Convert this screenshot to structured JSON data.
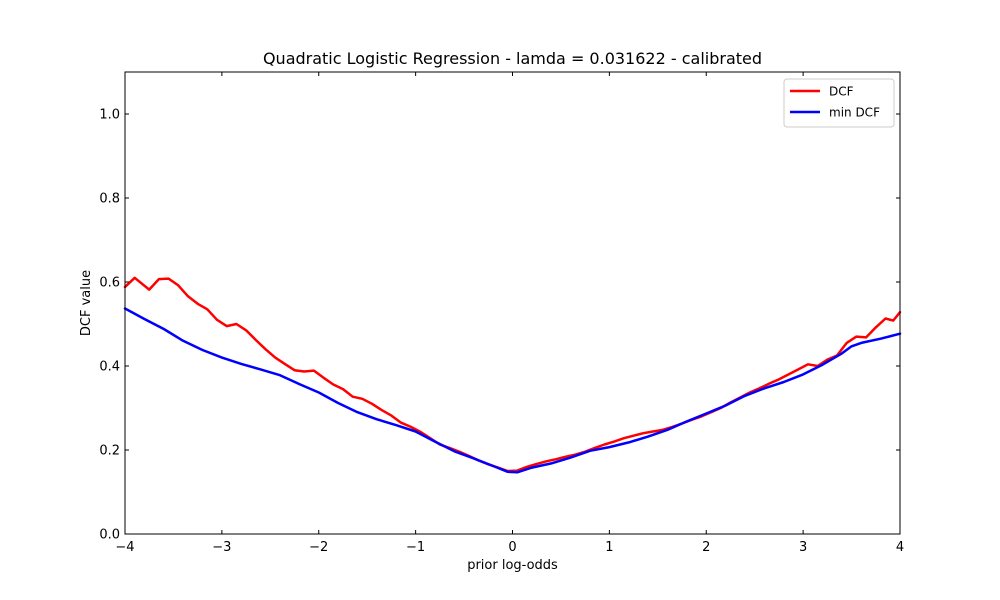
{
  "chart_data": {
    "type": "line",
    "title": "Quadratic Logistic Regression - lamda = 0.031622 - calibrated",
    "xlabel": "prior log-odds",
    "ylabel": "DCF value",
    "xlim": [
      -4,
      4
    ],
    "ylim": [
      0,
      1.1
    ],
    "xticks": [
      -4,
      -3,
      -2,
      -1,
      0,
      1,
      2,
      3,
      4
    ],
    "xtick_labels": [
      "−4",
      "−3",
      "−2",
      "−1",
      "0",
      "1",
      "2",
      "3",
      "4"
    ],
    "yticks": [
      0,
      0.2,
      0.4,
      0.6,
      0.8,
      1.0
    ],
    "ytick_labels": [
      "0.0",
      "0.2",
      "0.4",
      "0.6",
      "0.8",
      "1.0"
    ],
    "grid": false,
    "legend_position": "top-right",
    "series": [
      {
        "name": "DCF",
        "color": "#ff0000",
        "x": [
          -4,
          -3.9,
          -3.75,
          -3.65,
          -3.55,
          -3.45,
          -3.35,
          -3.25,
          -3.15,
          -3.05,
          -2.95,
          -2.85,
          -2.75,
          -2.65,
          -2.55,
          -2.45,
          -2.35,
          -2.25,
          -2.15,
          -2.05,
          -1.95,
          -1.85,
          -1.75,
          -1.65,
          -1.55,
          -1.45,
          -1.35,
          -1.25,
          -1.15,
          -1.05,
          -0.95,
          -0.85,
          -0.75,
          -0.65,
          -0.55,
          -0.45,
          -0.35,
          -0.25,
          -0.15,
          -0.05,
          0.05,
          0.15,
          0.25,
          0.35,
          0.45,
          0.55,
          0.65,
          0.75,
          0.85,
          0.95,
          1.05,
          1.15,
          1.25,
          1.35,
          1.45,
          1.55,
          1.65,
          1.75,
          1.85,
          1.95,
          2.05,
          2.15,
          2.25,
          2.35,
          2.45,
          2.55,
          2.65,
          2.75,
          2.85,
          2.95,
          3.05,
          3.15,
          3.25,
          3.35,
          3.45,
          3.55,
          3.65,
          3.75,
          3.85,
          3.93,
          4
        ],
        "y": [
          0.588,
          0.61,
          0.582,
          0.607,
          0.608,
          0.592,
          0.566,
          0.548,
          0.535,
          0.51,
          0.495,
          0.5,
          0.485,
          0.462,
          0.44,
          0.42,
          0.405,
          0.39,
          0.387,
          0.389,
          0.372,
          0.356,
          0.345,
          0.327,
          0.322,
          0.31,
          0.295,
          0.282,
          0.265,
          0.255,
          0.243,
          0.228,
          0.213,
          0.205,
          0.196,
          0.186,
          0.175,
          0.166,
          0.158,
          0.15,
          0.151,
          0.16,
          0.167,
          0.173,
          0.178,
          0.184,
          0.189,
          0.196,
          0.205,
          0.213,
          0.22,
          0.228,
          0.234,
          0.24,
          0.244,
          0.248,
          0.255,
          0.263,
          0.272,
          0.28,
          0.29,
          0.3,
          0.313,
          0.325,
          0.337,
          0.347,
          0.358,
          0.368,
          0.38,
          0.392,
          0.404,
          0.4,
          0.415,
          0.425,
          0.455,
          0.47,
          0.468,
          0.492,
          0.513,
          0.508,
          0.528
        ]
      },
      {
        "name": "min DCF",
        "color": "#0000ff",
        "x": [
          -4,
          -3.8,
          -3.6,
          -3.4,
          -3.2,
          -3.0,
          -2.8,
          -2.6,
          -2.4,
          -2.2,
          -2.0,
          -1.8,
          -1.6,
          -1.4,
          -1.2,
          -1.0,
          -0.8,
          -0.6,
          -0.4,
          -0.2,
          -0.05,
          0.05,
          0.2,
          0.4,
          0.6,
          0.8,
          1.0,
          1.2,
          1.4,
          1.6,
          1.8,
          2.0,
          2.2,
          2.4,
          2.6,
          2.8,
          3.0,
          3.2,
          3.4,
          3.5,
          3.6,
          3.8,
          4
        ],
        "y": [
          0.537,
          0.512,
          0.488,
          0.46,
          0.438,
          0.42,
          0.405,
          0.392,
          0.378,
          0.357,
          0.337,
          0.312,
          0.29,
          0.273,
          0.259,
          0.244,
          0.22,
          0.197,
          0.18,
          0.162,
          0.148,
          0.147,
          0.158,
          0.168,
          0.182,
          0.198,
          0.207,
          0.218,
          0.232,
          0.248,
          0.268,
          0.287,
          0.306,
          0.329,
          0.347,
          0.362,
          0.38,
          0.403,
          0.43,
          0.447,
          0.455,
          0.465,
          0.477
        ]
      }
    ]
  }
}
